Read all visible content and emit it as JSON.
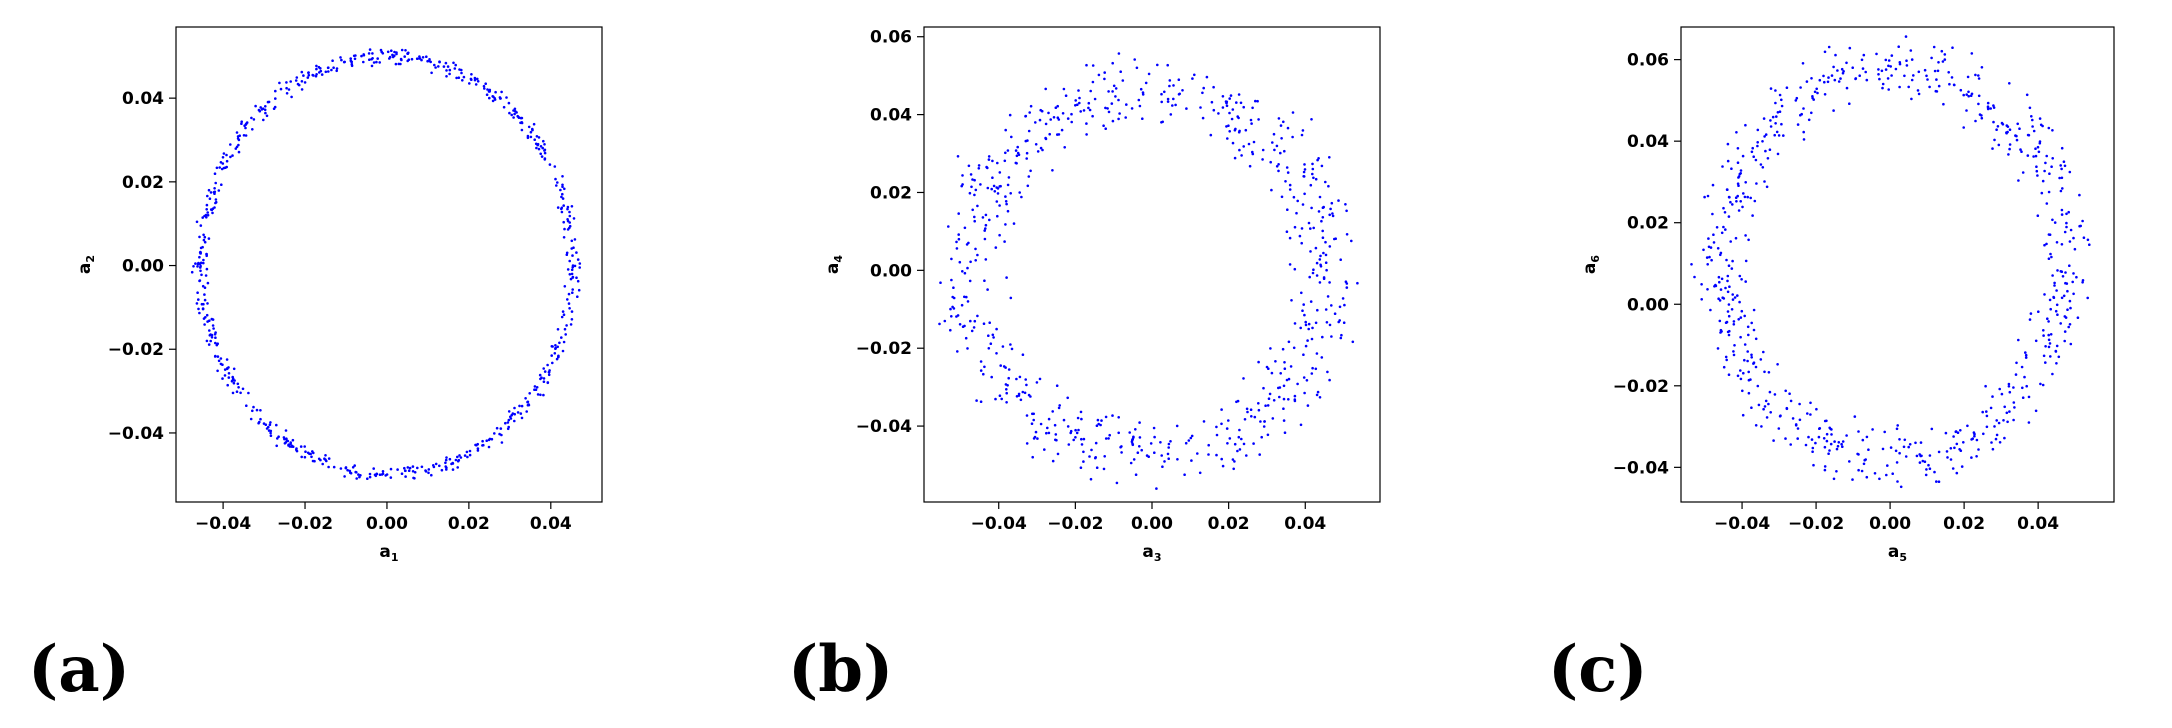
{
  "chart_data": [
    {
      "type": "scatter",
      "panel_label": "(a)",
      "xlabel": "a",
      "xlabel_sub": "1",
      "ylabel": "a",
      "ylabel_sub": "2",
      "xlim": [
        -0.0515,
        0.0525
      ],
      "ylim": [
        -0.0565,
        0.057
      ],
      "xticks": [
        -0.04,
        -0.02,
        0.0,
        0.02,
        0.04
      ],
      "xtick_labels": [
        "−0.04",
        "−0.02",
        "0.00",
        "0.02",
        "0.04"
      ],
      "yticks": [
        -0.04,
        -0.02,
        0.0,
        0.02,
        0.04
      ],
      "ytick_labels": [
        "−0.04",
        "−0.02",
        "0.00",
        "0.02",
        "0.04"
      ],
      "point_color": "#0000ff",
      "ring": {
        "cx": 0.0,
        "cy": 0.0,
        "rx": 0.0455,
        "ry": 0.05,
        "spread": 0.0009,
        "n": 700
      },
      "grid": false,
      "legend": "none"
    },
    {
      "type": "scatter",
      "panel_label": "(b)",
      "xlabel": "a",
      "xlabel_sub": "3",
      "ylabel": "a",
      "ylabel_sub": "4",
      "xlim": [
        -0.0595,
        0.0595
      ],
      "ylim": [
        -0.0595,
        0.0625
      ],
      "xticks": [
        -0.04,
        -0.02,
        0.0,
        0.02,
        0.04
      ],
      "xtick_labels": [
        "−0.04",
        "−0.02",
        "0.00",
        "0.02",
        "0.04"
      ],
      "yticks": [
        -0.04,
        -0.02,
        0.0,
        0.02,
        0.04,
        0.06
      ],
      "ytick_labels": [
        "−0.04",
        "−0.02",
        "0.00",
        "0.02",
        "0.04",
        "0.06"
      ],
      "point_color": "#0000ff",
      "ring": {
        "cx": -0.001,
        "cy": -0.001,
        "rx": 0.0465,
        "ry": 0.0465,
        "spread": 0.0045,
        "n": 700
      },
      "grid": false,
      "legend": "none"
    },
    {
      "type": "scatter",
      "panel_label": "(c)",
      "xlabel": "a",
      "xlabel_sub": "5",
      "ylabel": "a",
      "ylabel_sub": "6",
      "xlim": [
        -0.0565,
        0.0605
      ],
      "ylim": [
        -0.0485,
        0.068
      ],
      "xticks": [
        -0.04,
        -0.02,
        0.0,
        0.02,
        0.04
      ],
      "xtick_labels": [
        "−0.04",
        "−0.02",
        "0.00",
        "0.02",
        "0.04"
      ],
      "yticks": [
        -0.04,
        -0.02,
        0.0,
        0.02,
        0.04,
        0.06
      ],
      "ytick_labels": [
        "−0.04",
        "−0.02",
        "0.00",
        "0.02",
        "0.04",
        "0.06"
      ],
      "point_color": "#0000ff",
      "ring": {
        "cx": 0.001,
        "cy": 0.01,
        "rx": 0.0465,
        "ry": 0.048,
        "spread": 0.0035,
        "n": 700
      },
      "grid": false,
      "legend": "none"
    }
  ]
}
